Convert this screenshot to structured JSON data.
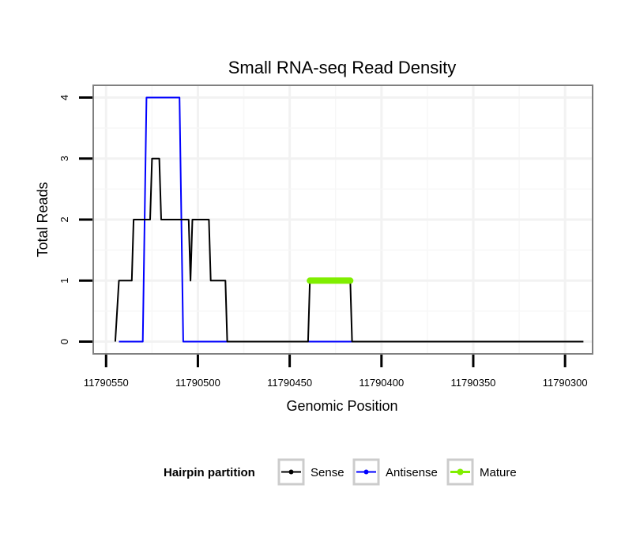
{
  "chart_data": {
    "type": "line",
    "title": "Small RNA-seq Read Density",
    "xlabel": "Genomic Position",
    "ylabel": "Total Reads",
    "xlim": [
      11790557,
      11790285
    ],
    "ylim": [
      -0.2,
      4.2
    ],
    "x_reversed": true,
    "xticks": [
      11790550,
      11790500,
      11790450,
      11790400,
      11790350,
      11790300
    ],
    "xtick_labels": [
      "11790550",
      "11790500",
      "11790450",
      "11790400",
      "11790350",
      "11790300"
    ],
    "yticks": [
      0,
      1,
      2,
      3,
      4
    ],
    "ytick_labels": [
      "0",
      "1",
      "2",
      "3",
      "4"
    ],
    "grid": true,
    "legend": {
      "title": "Hairpin partition",
      "position": "bottom",
      "entries": [
        {
          "name": "Sense",
          "color": "#000000"
        },
        {
          "name": "Antisense",
          "color": "#0000ff"
        },
        {
          "name": "Mature",
          "color": "#80ee00"
        }
      ]
    },
    "series": [
      {
        "name": "Sense",
        "color": "#000000",
        "x": [
          11790545,
          11790543,
          11790536,
          11790535,
          11790526,
          11790525,
          11790521,
          11790520,
          11790517,
          11790516,
          11790510,
          11790505,
          11790504,
          11790503,
          11790502,
          11790494,
          11790493,
          11790485,
          11790484,
          11790440,
          11790439,
          11790417,
          11790416,
          11790290
        ],
        "y": [
          0,
          1,
          1,
          2,
          2,
          3,
          3,
          2,
          2,
          2,
          2,
          2,
          1,
          2,
          2,
          2,
          1,
          1,
          0,
          0,
          1,
          1,
          0,
          0
        ]
      },
      {
        "name": "Antisense",
        "color": "#0000ff",
        "x": [
          11790543,
          11790530,
          11790528,
          11790510,
          11790508,
          11790484,
          11790440,
          11790416
        ],
        "y": [
          0,
          0,
          4,
          4,
          0,
          0,
          0,
          0
        ]
      },
      {
        "name": "Mature",
        "color": "#80ee00",
        "x": [
          11790439,
          11790417
        ],
        "y": [
          1,
          1
        ]
      }
    ]
  }
}
